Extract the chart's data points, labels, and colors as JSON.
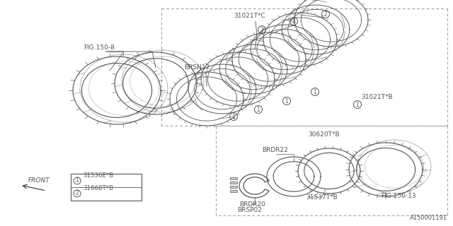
{
  "bg_color": "#ffffff",
  "line_color": "#555555",
  "gray": "#999999",
  "part_number": "A150001191",
  "labels": {
    "fig150_8": "FIG.150-8",
    "brsn12": "BRSN12",
    "31021tc": "31021T*C",
    "31021tb": "31021T*B",
    "30620tb": "30620T*B",
    "brdr22": "BRDR22",
    "brdr20": "BRDR20",
    "brsp02": "BRSP02",
    "31537tb": "31537T*B",
    "fig150_13": "FIG.150-13",
    "legend1": "31536E*B",
    "legend2": "31668T*B"
  },
  "front_label": "FRONT"
}
